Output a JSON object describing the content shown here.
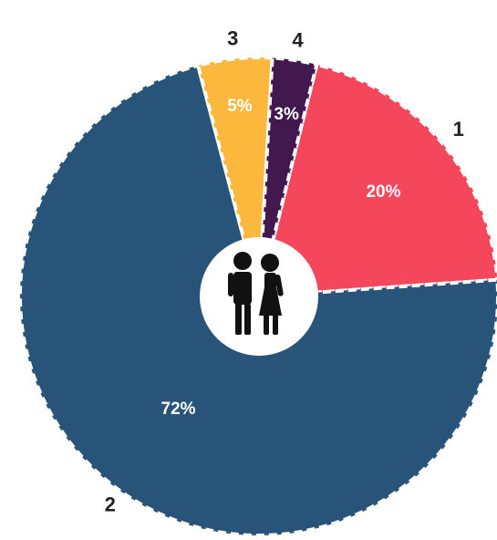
{
  "chart_data": {
    "type": "pie",
    "title": "",
    "start_angle_deg": -76,
    "categories": [
      "1",
      "2",
      "3",
      "4"
    ],
    "values": [
      20,
      72,
      5,
      3
    ],
    "value_labels": [
      "20%",
      "72%",
      "5%",
      "3%"
    ],
    "slice_order": [
      0,
      1,
      2,
      3
    ],
    "colors": [
      "#f5475c",
      "#285479",
      "#fbb83d",
      "#43184f"
    ],
    "legend": "none",
    "center_icon": "couple-icon"
  }
}
